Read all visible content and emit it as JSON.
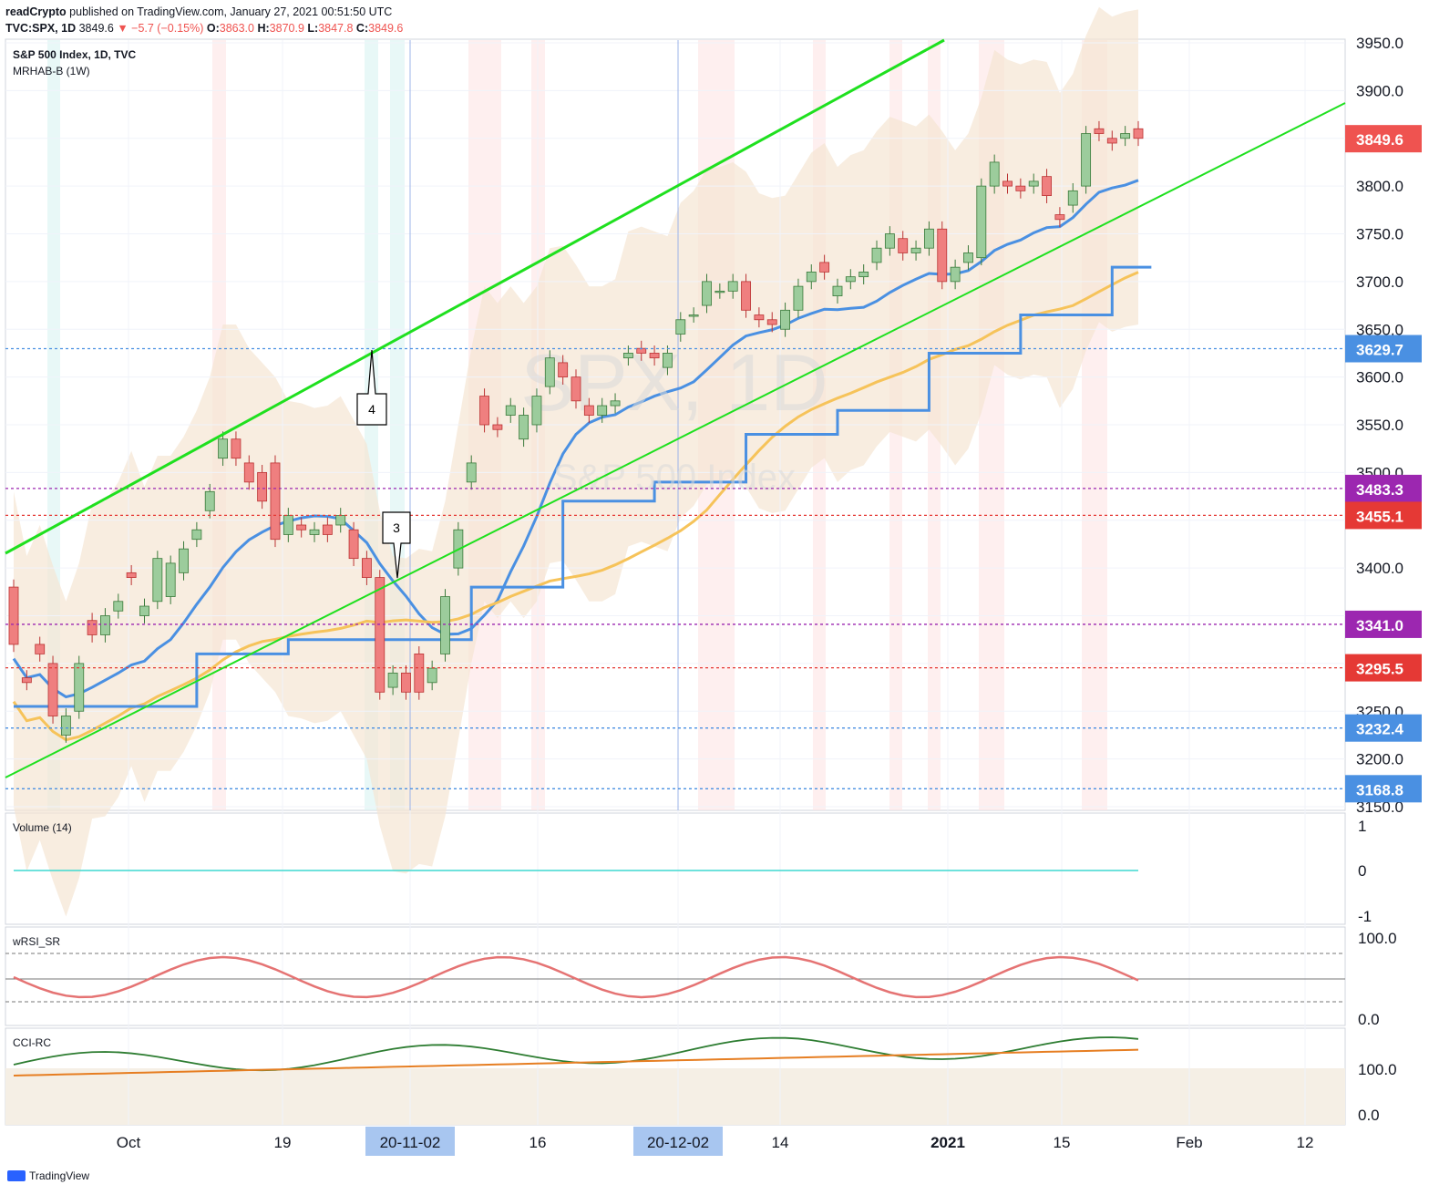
{
  "header": {
    "publisher_line": "readCrypto published on TradingView.com, January 27, 2021 00:51:50 UTC",
    "publisher": "readCrypto",
    "published_text": " published on TradingView.com, January 27, 2021 00:51:50 UTC",
    "symbol": "TVC:SPX, 1D",
    "last": "3849.6",
    "change": "▼ −5.7 (−0.15%)",
    "o_label": "O:",
    "o": "3863.0",
    "h_label": "H:",
    "h": "3870.9",
    "l_label": "L:",
    "l": "3847.8",
    "c_label": "C:",
    "c": "3849.6"
  },
  "main_pane": {
    "title": "S&P 500 Index, 1D, TVC",
    "indicator": "MRHAB-B (1W)",
    "watermark_symbol": "SPX, 1D",
    "watermark_name": "S&P 500 Index"
  },
  "annotations": [
    {
      "label": "4",
      "color": "#000000"
    },
    {
      "label": "3",
      "color": "#000000"
    }
  ],
  "price_tags": [
    {
      "value": "3849.6",
      "color": "#ef5350"
    },
    {
      "value": "3629.7",
      "color": "#4a90e2"
    },
    {
      "value": "3483.3",
      "color": "#9c27b0"
    },
    {
      "value": "3455.1",
      "color": "#e53935"
    },
    {
      "value": "3341.0",
      "color": "#9c27b0"
    },
    {
      "value": "3295.5",
      "color": "#e53935"
    },
    {
      "value": "3232.4",
      "color": "#4a90e2"
    },
    {
      "value": "3168.8",
      "color": "#4a90e2"
    }
  ],
  "price_axis": [
    "3950.0",
    "3900.0",
    "3850.0",
    "3800.0",
    "3750.0",
    "3700.0",
    "3650.0",
    "3600.0",
    "3550.0",
    "3500.0",
    "3450.0",
    "3400.0",
    "3350.0",
    "3300.0",
    "3250.0",
    "3200.0",
    "3150.0"
  ],
  "volume_pane": {
    "title": "Volume (14)",
    "axis": [
      "1",
      "0",
      "-1"
    ]
  },
  "rsi_pane": {
    "title": "wRSI_SR",
    "axis": [
      "100.0",
      "0.0"
    ]
  },
  "cci_pane": {
    "title": "CCI-RC",
    "axis": [
      "100.0",
      "0.0"
    ]
  },
  "time_axis": {
    "labels": [
      "Oct",
      "19",
      "16",
      "14",
      "2021",
      "15",
      "Feb",
      "12"
    ],
    "cursor_labels": [
      "20-11-02",
      "20-12-02"
    ]
  },
  "footer": {
    "brand": "TradingView"
  },
  "colors": {
    "bull_candle": "#9ccc9c",
    "bear_candle": "#ef7f7f",
    "channel_green": "#1fe01f",
    "blue_step": "#4a90e2",
    "orange_ma": "#f6c35a",
    "purple_ma": "#b06eb0",
    "cloud": "#f5e6d3"
  },
  "chart_data": {
    "type": "candlestick",
    "symbol": "TVC:SPX",
    "interval": "1D",
    "ylim": [
      3150,
      3950
    ],
    "candles": [
      {
        "o": 3380,
        "c": 3320
      },
      {
        "o": 3285,
        "c": 3280
      },
      {
        "o": 3320,
        "c": 3310
      },
      {
        "o": 3300,
        "c": 3245
      },
      {
        "o": 3225,
        "c": 3245
      },
      {
        "o": 3250,
        "c": 3300
      },
      {
        "o": 3345,
        "c": 3330
      },
      {
        "o": 3330,
        "c": 3350
      },
      {
        "o": 3355,
        "c": 3365
      },
      {
        "o": 3395,
        "c": 3390
      },
      {
        "o": 3350,
        "c": 3360
      },
      {
        "o": 3365,
        "c": 3410
      },
      {
        "o": 3370,
        "c": 3405
      },
      {
        "o": 3395,
        "c": 3420
      },
      {
        "o": 3430,
        "c": 3440
      },
      {
        "o": 3460,
        "c": 3480
      },
      {
        "o": 3515,
        "c": 3535
      },
      {
        "o": 3535,
        "c": 3515
      },
      {
        "o": 3510,
        "c": 3490
      },
      {
        "o": 3500,
        "c": 3470
      },
      {
        "o": 3510,
        "c": 3430
      },
      {
        "o": 3435,
        "c": 3455
      },
      {
        "o": 3445,
        "c": 3440
      },
      {
        "o": 3435,
        "c": 3440
      },
      {
        "o": 3445,
        "c": 3435
      },
      {
        "o": 3445,
        "c": 3455
      },
      {
        "o": 3440,
        "c": 3410
      },
      {
        "o": 3410,
        "c": 3390
      },
      {
        "o": 3390,
        "c": 3270
      },
      {
        "o": 3275,
        "c": 3290
      },
      {
        "o": 3290,
        "c": 3270
      },
      {
        "o": 3310,
        "c": 3270
      },
      {
        "o": 3280,
        "c": 3295
      },
      {
        "o": 3310,
        "c": 3370
      },
      {
        "o": 3400,
        "c": 3440
      },
      {
        "o": 3490,
        "c": 3510
      },
      {
        "o": 3580,
        "c": 3550
      },
      {
        "o": 3550,
        "c": 3545
      },
      {
        "o": 3560,
        "c": 3570
      },
      {
        "o": 3535,
        "c": 3560
      },
      {
        "o": 3550,
        "c": 3580
      },
      {
        "o": 3590,
        "c": 3620
      },
      {
        "o": 3615,
        "c": 3600
      },
      {
        "o": 3600,
        "c": 3575
      },
      {
        "o": 3570,
        "c": 3560
      },
      {
        "o": 3560,
        "c": 3570
      },
      {
        "o": 3570,
        "c": 3575
      },
      {
        "o": 3620,
        "c": 3625
      },
      {
        "o": 3630,
        "c": 3625
      },
      {
        "o": 3625,
        "c": 3620
      },
      {
        "o": 3610,
        "c": 3625
      },
      {
        "o": 3645,
        "c": 3660
      },
      {
        "o": 3665,
        "c": 3665
      },
      {
        "o": 3675,
        "c": 3700
      },
      {
        "o": 3690,
        "c": 3690
      },
      {
        "o": 3690,
        "c": 3700
      },
      {
        "o": 3700,
        "c": 3670
      },
      {
        "o": 3665,
        "c": 3660
      },
      {
        "o": 3660,
        "c": 3655
      },
      {
        "o": 3650,
        "c": 3670
      },
      {
        "o": 3670,
        "c": 3695
      },
      {
        "o": 3700,
        "c": 3710
      },
      {
        "o": 3720,
        "c": 3710
      },
      {
        "o": 3685,
        "c": 3695
      },
      {
        "o": 3700,
        "c": 3705
      },
      {
        "o": 3705,
        "c": 3710
      },
      {
        "o": 3720,
        "c": 3735
      },
      {
        "o": 3735,
        "c": 3750
      },
      {
        "o": 3745,
        "c": 3730
      },
      {
        "o": 3730,
        "c": 3735
      },
      {
        "o": 3735,
        "c": 3755
      },
      {
        "o": 3755,
        "c": 3700
      },
      {
        "o": 3700,
        "c": 3715
      },
      {
        "o": 3720,
        "c": 3730
      },
      {
        "o": 3725,
        "c": 3800
      },
      {
        "o": 3800,
        "c": 3825
      },
      {
        "o": 3805,
        "c": 3800
      },
      {
        "o": 3800,
        "c": 3795
      },
      {
        "o": 3800,
        "c": 3805
      },
      {
        "o": 3810,
        "c": 3790
      },
      {
        "o": 3770,
        "c": 3765
      },
      {
        "o": 3780,
        "c": 3795
      },
      {
        "o": 3800,
        "c": 3855
      },
      {
        "o": 3860,
        "c": 3855
      },
      {
        "o": 3850,
        "c": 3845
      },
      {
        "o": 3850,
        "c": 3855
      },
      {
        "o": 3860,
        "c": 3850
      }
    ],
    "horizontal_levels": [
      3629.7,
      3483.3,
      3455.1,
      3341.0,
      3295.5,
      3232.4,
      3168.8
    ]
  }
}
